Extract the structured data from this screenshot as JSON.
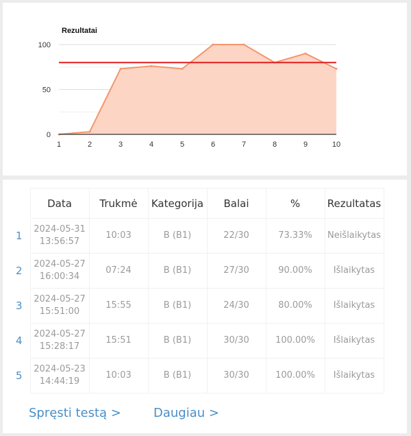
{
  "chart_data": {
    "type": "area",
    "title": "Rezultatai",
    "x": [
      1,
      2,
      3,
      4,
      5,
      6,
      7,
      8,
      9,
      10
    ],
    "values": [
      0,
      3,
      73,
      76,
      73,
      100,
      100,
      80,
      90,
      73
    ],
    "yticks": [
      0,
      50,
      100
    ],
    "ylim": [
      0,
      100
    ],
    "threshold": 80,
    "grid": true,
    "colors": {
      "area_fill": "#fdd5c5",
      "area_line": "#f4956c",
      "threshold": "#e01e1e"
    }
  },
  "table": {
    "headers": [
      "Data",
      "Trukmė",
      "Kategorija",
      "Balai",
      "%",
      "Rezultatas"
    ],
    "rows": [
      {
        "n": "1",
        "date": "2024-05-31",
        "time": "13:56:57",
        "duration": "10:03",
        "category": "B (B1)",
        "score": "22/30",
        "percent": "73.33%",
        "result": "Neišlaikytas",
        "status": "fail"
      },
      {
        "n": "2",
        "date": "2024-05-27",
        "time": "16:00:34",
        "duration": "07:24",
        "category": "B (B1)",
        "score": "27/30",
        "percent": "90.00%",
        "result": "Išlaikytas",
        "status": "pass"
      },
      {
        "n": "3",
        "date": "2024-05-27",
        "time": "15:51:00",
        "duration": "15:55",
        "category": "B (B1)",
        "score": "24/30",
        "percent": "80.00%",
        "result": "Išlaikytas",
        "status": "pass"
      },
      {
        "n": "4",
        "date": "2024-05-27",
        "time": "15:28:17",
        "duration": "15:51",
        "category": "B (B1)",
        "score": "30/30",
        "percent": "100.00%",
        "result": "Išlaikytas",
        "status": "pass"
      },
      {
        "n": "5",
        "date": "2024-05-23",
        "time": "14:44:19",
        "duration": "10:03",
        "category": "B (B1)",
        "score": "30/30",
        "percent": "100.00%",
        "result": "Išlaikytas",
        "status": "pass"
      }
    ]
  },
  "links": {
    "solve_test": "Spręsti testą  >",
    "more": "Daugiau  >"
  },
  "colors": {
    "link": "#4a8ec6",
    "fail": "#e83a3a",
    "pass": "#8cc63f"
  }
}
